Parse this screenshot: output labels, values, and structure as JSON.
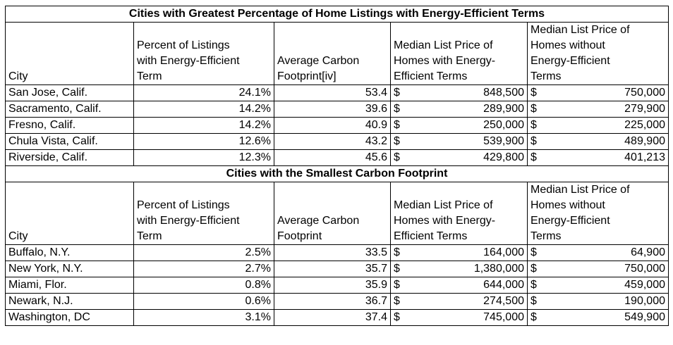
{
  "tables": [
    {
      "title": "Cities with Greatest Percentage of Home Listings with Energy-Efficient Terms",
      "headers": {
        "city": "City",
        "percent": [
          "Percent of Listings",
          "with Energy-Efficient",
          "Term"
        ],
        "carbon": [
          "Average Carbon",
          "Footprint[iv]"
        ],
        "with_terms": [
          "Median List Price of",
          "Homes with Energy-",
          "Efficient Terms"
        ],
        "without_terms": [
          "Median List Price of",
          "Homes without",
          "Energy-Efficient",
          "Terms"
        ]
      },
      "rows": [
        {
          "city": "San Jose, Calif.",
          "percent": "24.1%",
          "carbon": "53.4",
          "cur1": "$",
          "with": "848,500",
          "cur2": "$",
          "without": "750,000"
        },
        {
          "city": "Sacramento, Calif.",
          "percent": "14.2%",
          "carbon": "39.6",
          "cur1": "$",
          "with": "289,900",
          "cur2": "$",
          "without": "279,900"
        },
        {
          "city": "Fresno, Calif.",
          "percent": "14.2%",
          "carbon": "40.9",
          "cur1": "$",
          "with": "250,000",
          "cur2": "$",
          "without": "225,000"
        },
        {
          "city": "Chula Vista, Calif.",
          "percent": "12.6%",
          "carbon": "43.2",
          "cur1": "$",
          "with": "539,900",
          "cur2": "$",
          "without": "489,900"
        },
        {
          "city": "Riverside, Calif.",
          "percent": "12.3%",
          "carbon": "45.6",
          "cur1": "$",
          "with": "429,800",
          "cur2": "$",
          "without": "401,213"
        }
      ]
    },
    {
      "title": "Cities with the Smallest Carbon Footprint",
      "headers": {
        "city": "City",
        "percent": [
          "Percent of Listings",
          "with Energy-Efficient",
          "Term"
        ],
        "carbon": [
          "Average Carbon",
          "Footprint"
        ],
        "with_terms": [
          "Median List Price of",
          "Homes with Energy-",
          "Efficient Terms"
        ],
        "without_terms": [
          "Median List Price of",
          "Homes without",
          "Energy-Efficient",
          "Terms"
        ]
      },
      "rows": [
        {
          "city": "Buffalo, N.Y.",
          "percent": "2.5%",
          "carbon": "33.5",
          "cur1": "$",
          "with": "164,000",
          "cur2": "$",
          "without": "64,900"
        },
        {
          "city": "New York, N.Y.",
          "percent": "2.7%",
          "carbon": "35.7",
          "cur1": "$",
          "with": "1,380,000",
          "cur2": "$",
          "without": "750,000"
        },
        {
          "city": "Miami, Flor.",
          "percent": "0.8%",
          "carbon": "35.9",
          "cur1": "$",
          "with": "644,000",
          "cur2": "$",
          "without": "459,000"
        },
        {
          "city": "Newark, N.J.",
          "percent": "0.6%",
          "carbon": "36.7",
          "cur1": "$",
          "with": "274,500",
          "cur2": "$",
          "without": "190,000"
        },
        {
          "city": "Washington, DC",
          "percent": "3.1%",
          "carbon": "37.4",
          "cur1": "$",
          "with": "745,000",
          "cur2": "$",
          "without": "549,900"
        }
      ]
    }
  ]
}
